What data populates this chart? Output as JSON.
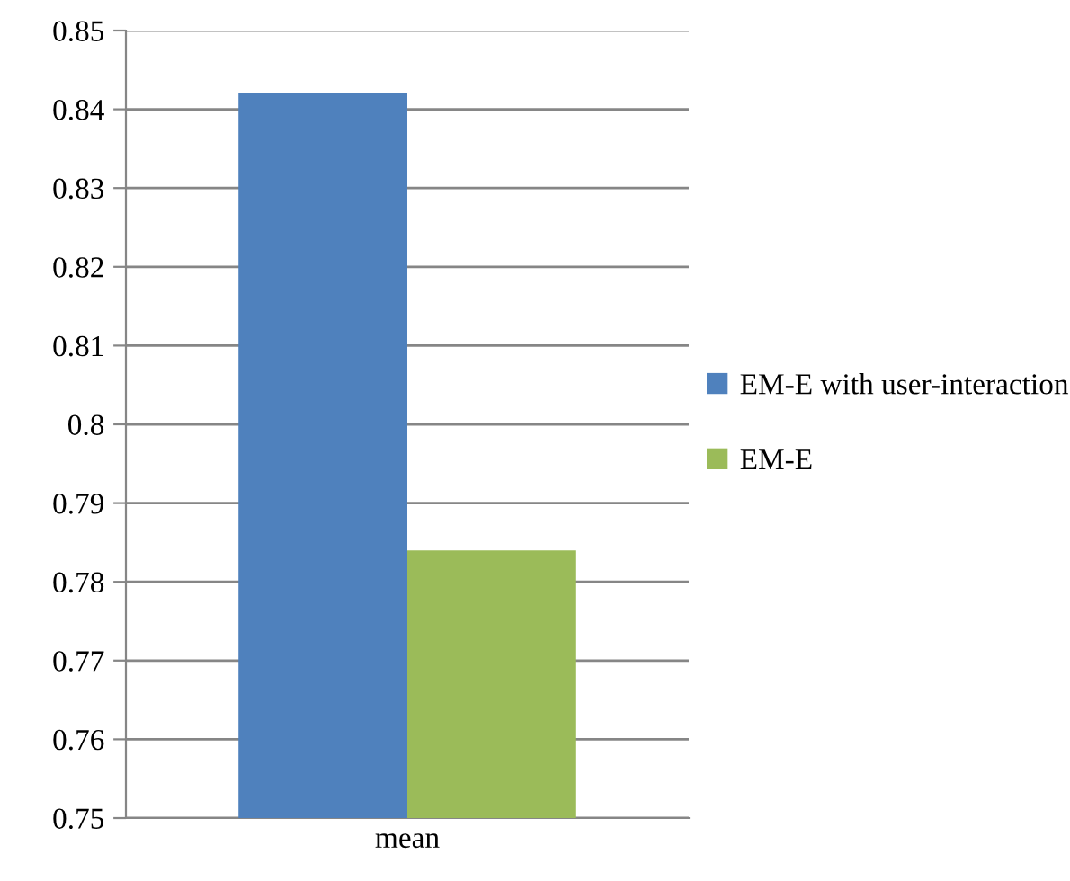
{
  "chart_data": {
    "type": "bar",
    "categories": [
      "mean"
    ],
    "series": [
      {
        "name": "EM-E with user-interaction",
        "color": "#4f81bd",
        "values": [
          0.842
        ]
      },
      {
        "name": "EM-E",
        "color": "#9bbb59",
        "values": [
          0.784
        ]
      }
    ],
    "ylim": [
      0.75,
      0.85
    ],
    "yticks": [
      0.75,
      0.76,
      0.77,
      0.78,
      0.79,
      0.8,
      0.81,
      0.82,
      0.83,
      0.84,
      0.85
    ],
    "grid": "y",
    "legend": "right"
  }
}
